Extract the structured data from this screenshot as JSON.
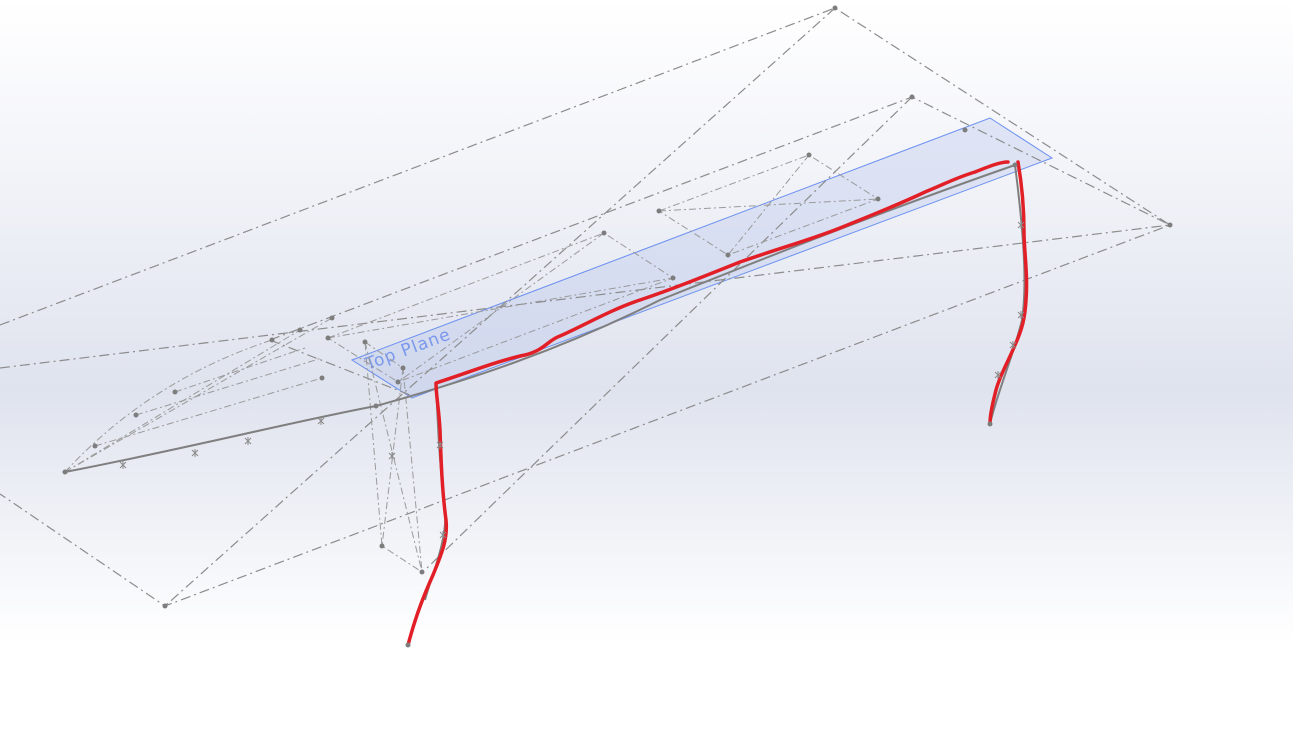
{
  "viewport": {
    "background_top": "#ffffff",
    "background_mid": "#dfe3ee",
    "background_bottom": "#ffffff"
  },
  "plane": {
    "label": "Top Plane",
    "outline_color": "#6a8ff0"
  },
  "annotation": {
    "markup_color": "#e21f26"
  }
}
